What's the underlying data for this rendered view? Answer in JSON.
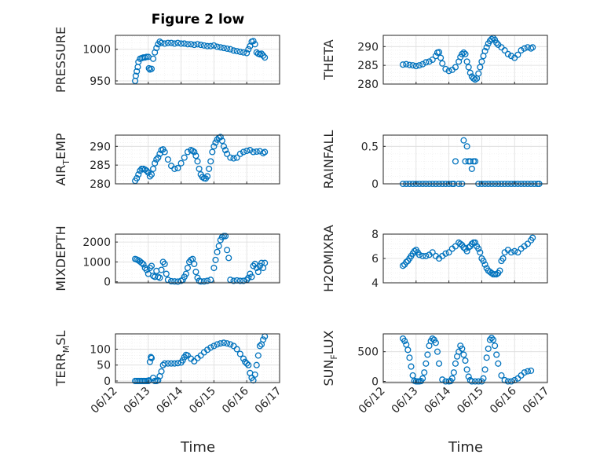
{
  "title": "Figure 2 low",
  "colors": {
    "marker": "#0072BD",
    "axis": "#262626",
    "grid_major": "#dcdcdc",
    "grid_minor": "#ececec"
  },
  "date_ticks": [
    "06/12",
    "06/13",
    "06/14",
    "06/15",
    "06/16",
    "06/17"
  ],
  "x_label": "Time",
  "chart_data": [
    {
      "type": "scatter",
      "key": "pressure",
      "ylabel": "PRESSURE",
      "xlim": [
        "06/12",
        "06/17"
      ],
      "ylim": [
        945,
        1022
      ],
      "yticks": [
        "950",
        "1000"
      ],
      "ytick_values": [
        950,
        1000
      ],
      "x": [
        12.6,
        12.62,
        12.65,
        12.68,
        12.7,
        12.75,
        12.8,
        12.85,
        12.9,
        12.95,
        13.0,
        13.02,
        13.05,
        13.1,
        13.15,
        13.2,
        13.25,
        13.3,
        13.35,
        13.4,
        13.5,
        13.6,
        13.7,
        13.8,
        13.9,
        14.0,
        14.1,
        14.2,
        14.3,
        14.4,
        14.5,
        14.6,
        14.7,
        14.8,
        14.9,
        15.0,
        15.1,
        15.2,
        15.3,
        15.4,
        15.5,
        15.6,
        15.7,
        15.8,
        15.9,
        16.0,
        16.05,
        16.1,
        16.15,
        16.2,
        16.25,
        16.3,
        16.35,
        16.4,
        16.45,
        16.5,
        16.55
      ],
      "y": [
        950,
        958,
        965,
        972,
        980,
        985,
        986,
        987,
        987,
        988,
        988,
        970,
        968,
        969,
        985,
        995,
        1002,
        1008,
        1012,
        1010,
        1009,
        1010,
        1010,
        1009,
        1010,
        1009,
        1009,
        1008,
        1008,
        1007,
        1008,
        1007,
        1006,
        1005,
        1005,
        1006,
        1004,
        1003,
        1002,
        1001,
        1000,
        998,
        997,
        996,
        995,
        994,
        1000,
        1005,
        1012,
        1013,
        1008,
        995,
        993,
        992,
        993,
        990,
        987
      ]
    },
    {
      "type": "scatter",
      "key": "theta",
      "ylabel": "THETA",
      "xlim": [
        "06/12",
        "06/17"
      ],
      "ylim": [
        280,
        293
      ],
      "yticks": [
        "280",
        "285",
        "290"
      ],
      "ytick_values": [
        280,
        285,
        290
      ],
      "x": [
        12.6,
        12.7,
        12.8,
        12.9,
        13.0,
        13.1,
        13.2,
        13.3,
        13.4,
        13.5,
        13.6,
        13.65,
        13.7,
        13.75,
        13.8,
        13.9,
        14.0,
        14.1,
        14.2,
        14.3,
        14.35,
        14.4,
        14.45,
        14.5,
        14.55,
        14.6,
        14.65,
        14.7,
        14.75,
        14.8,
        14.85,
        14.9,
        14.95,
        15.0,
        15.05,
        15.1,
        15.15,
        15.2,
        15.25,
        15.3,
        15.35,
        15.4,
        15.45,
        15.5,
        15.6,
        15.7,
        15.8,
        15.9,
        16.0,
        16.1,
        16.2,
        16.3,
        16.4,
        16.5,
        16.55
      ],
      "y": [
        285.2,
        285.3,
        285.1,
        285.0,
        284.8,
        285.0,
        285.3,
        285.8,
        286.0,
        286.5,
        287.5,
        288.4,
        288.5,
        287.0,
        285.5,
        284.0,
        283.5,
        283.8,
        284.5,
        286.0,
        287.2,
        288.0,
        288.4,
        288.0,
        286.0,
        284.5,
        283.0,
        282.0,
        281.5,
        281.2,
        281.5,
        282.8,
        284.5,
        286.0,
        287.5,
        288.8,
        289.8,
        290.8,
        291.5,
        292.0,
        292.3,
        291.8,
        291.0,
        290.5,
        289.8,
        289.0,
        288.0,
        287.5,
        287.0,
        287.8,
        289.0,
        289.5,
        289.8,
        289.5,
        289.8
      ]
    },
    {
      "type": "scatter",
      "key": "air_temp",
      "ylabel": "AIR",
      "ylabel_sub": "T",
      "ylabel_end": "EMP",
      "xlim": [
        "06/12",
        "06/17"
      ],
      "ylim": [
        280,
        293
      ],
      "yticks": [
        "280",
        "285",
        "290"
      ],
      "ytick_values": [
        280,
        285,
        290
      ],
      "x": [
        12.6,
        12.65,
        12.7,
        12.75,
        12.8,
        12.85,
        12.9,
        12.95,
        13.0,
        13.05,
        13.1,
        13.15,
        13.2,
        13.25,
        13.3,
        13.35,
        13.4,
        13.45,
        13.5,
        13.6,
        13.7,
        13.8,
        13.9,
        14.0,
        14.1,
        14.2,
        14.3,
        14.35,
        14.4,
        14.45,
        14.5,
        14.55,
        14.6,
        14.65,
        14.7,
        14.75,
        14.8,
        14.85,
        14.9,
        14.95,
        15.0,
        15.05,
        15.1,
        15.15,
        15.2,
        15.25,
        15.3,
        15.35,
        15.4,
        15.5,
        15.6,
        15.7,
        15.8,
        15.9,
        16.0,
        16.1,
        16.2,
        16.3,
        16.4,
        16.5,
        16.55
      ],
      "y": [
        280.8,
        281.5,
        282.5,
        283.5,
        284.0,
        284.0,
        283.8,
        283.5,
        283.0,
        282.0,
        282.5,
        284.0,
        285.5,
        286.5,
        287.0,
        288.0,
        289.0,
        289.2,
        288.5,
        286.5,
        284.8,
        284.0,
        284.2,
        285.5,
        287.0,
        288.5,
        289.0,
        288.8,
        288.5,
        287.5,
        286.0,
        284.0,
        282.5,
        281.8,
        281.5,
        281.4,
        282.0,
        284.0,
        286.0,
        288.5,
        290.0,
        291.0,
        291.8,
        292.3,
        292.5,
        291.5,
        290.0,
        289.0,
        288.0,
        287.0,
        286.8,
        287.0,
        288.0,
        288.5,
        288.8,
        289.0,
        288.5,
        288.6,
        288.7,
        288.2,
        288.5
      ]
    },
    {
      "type": "scatter",
      "key": "rainfall",
      "ylabel": "RAINFALL",
      "xlim": [
        "06/12",
        "06/17"
      ],
      "ylim": [
        0,
        0.65
      ],
      "yticks": [
        "0",
        "0.5"
      ],
      "ytick_values": [
        0,
        0.5
      ],
      "x": [
        12.6,
        12.7,
        12.8,
        12.9,
        13.0,
        13.1,
        13.2,
        13.3,
        13.4,
        13.5,
        13.6,
        13.7,
        13.8,
        13.9,
        14.0,
        14.1,
        14.15,
        14.2,
        14.3,
        14.4,
        14.45,
        14.5,
        14.55,
        14.6,
        14.65,
        14.7,
        14.75,
        14.8,
        14.9,
        15.0,
        15.1,
        15.2,
        15.3,
        15.4,
        15.5,
        15.6,
        15.7,
        15.8,
        15.9,
        16.0,
        16.1,
        16.2,
        16.3,
        16.4,
        16.5,
        16.6,
        16.7,
        16.75
      ],
      "y": [
        0,
        0,
        0,
        0,
        0,
        0,
        0,
        0,
        0,
        0,
        0,
        0,
        0,
        0,
        0,
        0,
        0,
        0.3,
        0,
        0,
        0.58,
        0.3,
        0.5,
        0.3,
        0.3,
        0.2,
        0.3,
        0.3,
        0,
        0,
        0,
        0,
        0,
        0,
        0,
        0,
        0,
        0,
        0,
        0,
        0,
        0,
        0,
        0,
        0,
        0,
        0,
        0
      ]
    },
    {
      "type": "scatter",
      "key": "mixdepth",
      "ylabel": "MIXDEPTH",
      "xlim": [
        "06/12",
        "06/17"
      ],
      "ylim": [
        -50,
        2400
      ],
      "yticks": [
        "0",
        "1000",
        "2000"
      ],
      "ytick_values": [
        0,
        1000,
        2000
      ],
      "x": [
        12.6,
        12.65,
        12.7,
        12.75,
        12.8,
        12.85,
        12.9,
        12.95,
        13.0,
        13.05,
        13.1,
        13.15,
        13.2,
        13.25,
        13.3,
        13.35,
        13.4,
        13.45,
        13.5,
        13.55,
        13.6,
        13.7,
        13.8,
        13.9,
        14.0,
        14.05,
        14.1,
        14.15,
        14.2,
        14.25,
        14.3,
        14.35,
        14.4,
        14.45,
        14.5,
        14.55,
        14.6,
        14.7,
        14.8,
        14.9,
        15.0,
        15.05,
        15.1,
        15.15,
        15.2,
        15.25,
        15.3,
        15.35,
        15.4,
        15.45,
        15.5,
        15.6,
        15.7,
        15.8,
        15.9,
        16.0,
        16.05,
        16.1,
        16.15,
        16.2,
        16.25,
        16.3,
        16.35,
        16.4,
        16.45,
        16.5,
        16.55
      ],
      "y": [
        1150,
        1120,
        1080,
        1020,
        950,
        880,
        700,
        600,
        400,
        700,
        800,
        300,
        250,
        550,
        250,
        200,
        600,
        1000,
        900,
        400,
        100,
        30,
        20,
        10,
        50,
        100,
        250,
        400,
        700,
        1000,
        1100,
        1150,
        900,
        500,
        200,
        50,
        20,
        20,
        50,
        100,
        700,
        1100,
        1500,
        1800,
        2100,
        2250,
        2300,
        2300,
        1600,
        1200,
        100,
        50,
        70,
        50,
        50,
        100,
        200,
        400,
        250,
        800,
        900,
        700,
        500,
        800,
        950,
        700,
        950
      ]
    },
    {
      "type": "scatter",
      "key": "h2omixra",
      "ylabel": "H2OMIXRA",
      "xlim": [
        "06/12",
        "06/17"
      ],
      "ylim": [
        4,
        8
      ],
      "yticks": [
        "4",
        "6",
        "8"
      ],
      "ytick_values": [
        4,
        6,
        8
      ],
      "x": [
        12.6,
        12.65,
        12.7,
        12.75,
        12.8,
        12.85,
        12.9,
        12.95,
        13.0,
        13.05,
        13.1,
        13.2,
        13.3,
        13.4,
        13.5,
        13.6,
        13.7,
        13.8,
        13.9,
        14.0,
        14.1,
        14.2,
        14.3,
        14.35,
        14.4,
        14.45,
        14.5,
        14.55,
        14.6,
        14.65,
        14.7,
        14.75,
        14.8,
        14.85,
        14.9,
        14.95,
        15.0,
        15.05,
        15.1,
        15.15,
        15.2,
        15.25,
        15.3,
        15.35,
        15.4,
        15.45,
        15.5,
        15.55,
        15.6,
        15.65,
        15.7,
        15.8,
        15.9,
        16.0,
        16.1,
        16.2,
        16.3,
        16.4,
        16.5,
        16.55
      ],
      "y": [
        5.4,
        5.5,
        5.7,
        5.8,
        6.0,
        6.2,
        6.4,
        6.6,
        6.7,
        6.5,
        6.3,
        6.2,
        6.2,
        6.3,
        6.5,
        6.2,
        6.0,
        6.2,
        6.4,
        6.5,
        6.8,
        7.0,
        7.3,
        7.2,
        7.1,
        6.9,
        6.8,
        6.6,
        6.9,
        7.0,
        7.2,
        7.3,
        7.3,
        7.0,
        6.8,
        6.5,
        6.0,
        5.8,
        5.5,
        5.2,
        5.0,
        4.9,
        4.8,
        4.7,
        4.7,
        4.7,
        4.8,
        5.0,
        5.8,
        6.0,
        6.5,
        6.7,
        6.5,
        6.6,
        6.5,
        6.8,
        7.0,
        7.2,
        7.5,
        7.7
      ]
    },
    {
      "type": "scatter",
      "key": "terr_msl",
      "ylabel": "TERR",
      "ylabel_sub": "M",
      "ylabel_end": "SL",
      "xlim": [
        "06/12",
        "06/17"
      ],
      "ylim": [
        -5,
        148
      ],
      "yticks": [
        "0",
        "50",
        "100"
      ],
      "ytick_values": [
        0,
        50,
        100
      ],
      "x": [
        12.6,
        12.65,
        12.7,
        12.75,
        12.8,
        12.85,
        12.9,
        12.95,
        13.0,
        13.02,
        13.05,
        13.08,
        13.1,
        13.15,
        13.2,
        13.25,
        13.3,
        13.35,
        13.4,
        13.45,
        13.5,
        13.6,
        13.7,
        13.8,
        13.9,
        14.0,
        14.05,
        14.1,
        14.15,
        14.2,
        14.3,
        14.4,
        14.5,
        14.6,
        14.7,
        14.8,
        14.9,
        15.0,
        15.1,
        15.2,
        15.3,
        15.4,
        15.5,
        15.6,
        15.7,
        15.8,
        15.9,
        15.95,
        16.0,
        16.05,
        16.1,
        16.15,
        16.2,
        16.25,
        16.3,
        16.35,
        16.4,
        16.45,
        16.5,
        16.55
      ],
      "y": [
        0,
        0,
        0,
        0,
        0,
        0,
        0,
        0,
        0,
        2,
        60,
        75,
        72,
        10,
        0,
        0,
        2,
        15,
        30,
        50,
        55,
        55,
        55,
        55,
        56,
        58,
        65,
        75,
        82,
        80,
        70,
        62,
        72,
        80,
        90,
        98,
        105,
        110,
        115,
        118,
        120,
        118,
        115,
        110,
        100,
        85,
        70,
        60,
        55,
        50,
        25,
        10,
        2,
        20,
        50,
        80,
        110,
        115,
        130,
        140
      ]
    },
    {
      "type": "scatter",
      "key": "sun_flux",
      "ylabel": "SUN",
      "ylabel_sub": "F",
      "ylabel_end": "LUX",
      "xlim": [
        "06/12",
        "06/17"
      ],
      "ylim": [
        -20,
        800
      ],
      "yticks": [
        "0",
        "500"
      ],
      "ytick_values": [
        0,
        500
      ],
      "x": [
        12.6,
        12.65,
        12.7,
        12.75,
        12.8,
        12.85,
        12.9,
        12.95,
        13.0,
        13.05,
        13.1,
        13.15,
        13.2,
        13.25,
        13.3,
        13.35,
        13.4,
        13.45,
        13.5,
        13.55,
        13.6,
        13.65,
        13.7,
        13.8,
        13.9,
        14.0,
        14.05,
        14.1,
        14.15,
        14.2,
        14.25,
        14.3,
        14.35,
        14.4,
        14.45,
        14.5,
        14.55,
        14.6,
        14.65,
        14.7,
        14.8,
        14.9,
        15.0,
        15.05,
        15.1,
        15.15,
        15.2,
        15.25,
        15.3,
        15.35,
        15.4,
        15.45,
        15.5,
        15.6,
        15.7,
        15.8,
        15.9,
        16.0,
        16.1,
        16.2,
        16.3,
        16.4,
        16.5
      ],
      "y": [
        720,
        680,
        620,
        530,
        400,
        250,
        100,
        10,
        0,
        0,
        0,
        5,
        50,
        150,
        300,
        450,
        600,
        680,
        720,
        700,
        650,
        500,
        300,
        30,
        0,
        0,
        5,
        50,
        150,
        300,
        420,
        500,
        600,
        550,
        450,
        350,
        200,
        80,
        20,
        0,
        0,
        0,
        0,
        50,
        200,
        400,
        550,
        700,
        730,
        700,
        600,
        450,
        300,
        100,
        20,
        0,
        0,
        20,
        50,
        100,
        150,
        170,
        180
      ]
    }
  ]
}
